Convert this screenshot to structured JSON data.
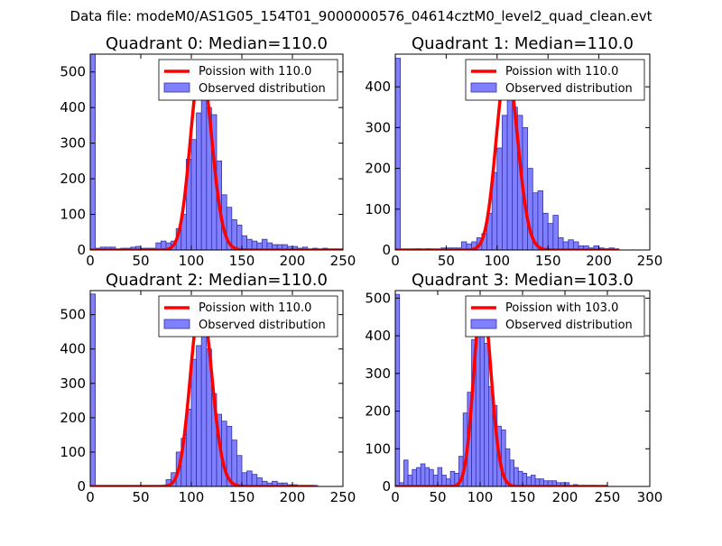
{
  "figure": {
    "suptitle": "Data file: modeM0/AS1G05_154T01_9000000576_04614cztM0_level2_quad_clean.evt"
  },
  "colors": {
    "bar_fill": "#7f7fff",
    "bar_edge": "#3333aa",
    "curve": "#ff0000",
    "legend_edge": "#000000"
  },
  "chart_data": [
    {
      "type": "bar",
      "title": "Quadrant 0: Median=110.0",
      "xlim": [
        0,
        250
      ],
      "ylim": [
        0,
        550
      ],
      "xticks": [
        0,
        50,
        100,
        150,
        200,
        250
      ],
      "yticks": [
        0,
        100,
        200,
        300,
        400,
        500
      ],
      "bin_width": 5,
      "bins": [
        [
          0,
          550
        ],
        [
          5,
          5
        ],
        [
          10,
          8
        ],
        [
          15,
          8
        ],
        [
          20,
          8
        ],
        [
          30,
          5
        ],
        [
          35,
          5
        ],
        [
          40,
          8
        ],
        [
          45,
          10
        ],
        [
          50,
          5
        ],
        [
          55,
          5
        ],
        [
          60,
          5
        ],
        [
          65,
          20
        ],
        [
          70,
          25
        ],
        [
          75,
          20
        ],
        [
          80,
          25
        ],
        [
          85,
          60
        ],
        [
          90,
          100
        ],
        [
          95,
          255
        ],
        [
          100,
          310
        ],
        [
          105,
          385
        ],
        [
          110,
          520
        ],
        [
          115,
          400
        ],
        [
          120,
          380
        ],
        [
          125,
          250
        ],
        [
          130,
          155
        ],
        [
          135,
          120
        ],
        [
          140,
          85
        ],
        [
          145,
          70
        ],
        [
          150,
          40
        ],
        [
          155,
          30
        ],
        [
          160,
          25
        ],
        [
          165,
          20
        ],
        [
          170,
          30
        ],
        [
          175,
          20
        ],
        [
          180,
          15
        ],
        [
          185,
          15
        ],
        [
          190,
          15
        ],
        [
          195,
          10
        ],
        [
          200,
          10
        ],
        [
          205,
          5
        ],
        [
          210,
          8
        ],
        [
          220,
          5
        ],
        [
          230,
          5
        ],
        [
          240,
          3
        ]
      ],
      "poisson": {
        "lambda": 110.0,
        "peak": 520,
        "x_range": [
          0,
          250
        ]
      },
      "legend": [
        "Poission with 110.0",
        "Observed distribution"
      ]
    },
    {
      "type": "bar",
      "title": "Quadrant 1: Median=110.0",
      "xlim": [
        0,
        250
      ],
      "ylim": [
        0,
        480
      ],
      "xticks": [
        0,
        50,
        100,
        150,
        200,
        250
      ],
      "yticks": [
        0,
        100,
        200,
        300,
        400
      ],
      "bin_width": 5,
      "bins": [
        [
          0,
          470
        ],
        [
          20,
          3
        ],
        [
          30,
          3
        ],
        [
          45,
          5
        ],
        [
          50,
          5
        ],
        [
          55,
          5
        ],
        [
          60,
          5
        ],
        [
          65,
          20
        ],
        [
          70,
          15
        ],
        [
          75,
          20
        ],
        [
          80,
          30
        ],
        [
          85,
          40
        ],
        [
          90,
          90
        ],
        [
          95,
          190
        ],
        [
          100,
          250
        ],
        [
          105,
          330
        ],
        [
          110,
          450
        ],
        [
          115,
          350
        ],
        [
          120,
          330
        ],
        [
          125,
          300
        ],
        [
          130,
          200
        ],
        [
          135,
          140
        ],
        [
          140,
          145
        ],
        [
          145,
          90
        ],
        [
          150,
          65
        ],
        [
          155,
          85
        ],
        [
          160,
          30
        ],
        [
          165,
          20
        ],
        [
          170,
          25
        ],
        [
          175,
          20
        ],
        [
          180,
          10
        ],
        [
          185,
          10
        ],
        [
          190,
          5
        ],
        [
          195,
          10
        ],
        [
          200,
          5
        ],
        [
          205,
          3
        ],
        [
          210,
          5
        ]
      ],
      "poisson": {
        "lambda": 110.0,
        "peak": 450,
        "x_range": [
          0,
          220
        ]
      },
      "legend": [
        "Poission with 110.0",
        "Observed distribution"
      ]
    },
    {
      "type": "bar",
      "title": "Quadrant 2: Median=110.0",
      "xlim": [
        0,
        250
      ],
      "ylim": [
        0,
        570
      ],
      "xticks": [
        0,
        50,
        100,
        150,
        200,
        250
      ],
      "yticks": [
        0,
        100,
        200,
        300,
        400,
        500
      ],
      "bin_width": 5,
      "bins": [
        [
          0,
          560
        ],
        [
          75,
          20
        ],
        [
          80,
          40
        ],
        [
          85,
          100
        ],
        [
          90,
          140
        ],
        [
          95,
          225
        ],
        [
          100,
          370
        ],
        [
          105,
          410
        ],
        [
          110,
          480
        ],
        [
          115,
          400
        ],
        [
          120,
          270
        ],
        [
          125,
          210
        ],
        [
          130,
          190
        ],
        [
          135,
          175
        ],
        [
          140,
          135
        ],
        [
          145,
          90
        ],
        [
          150,
          40
        ],
        [
          155,
          45
        ],
        [
          160,
          35
        ],
        [
          165,
          25
        ],
        [
          170,
          15
        ],
        [
          175,
          10
        ],
        [
          180,
          15
        ],
        [
          185,
          10
        ],
        [
          190,
          10
        ],
        [
          195,
          5
        ],
        [
          200,
          5
        ],
        [
          210,
          3
        ],
        [
          220,
          3
        ]
      ],
      "poisson": {
        "lambda": 110.0,
        "peak": 540,
        "x_range": [
          0,
          222
        ]
      },
      "legend": [
        "Poission with 110.0",
        "Observed distribution"
      ]
    },
    {
      "type": "bar",
      "title": "Quadrant 3: Median=103.0",
      "xlim": [
        0,
        300
      ],
      "ylim": [
        0,
        520
      ],
      "xticks": [
        0,
        50,
        100,
        150,
        200,
        250,
        300
      ],
      "yticks": [
        0,
        100,
        200,
        300,
        400,
        500
      ],
      "bin_width": 5,
      "bins": [
        [
          0,
          510
        ],
        [
          5,
          10
        ],
        [
          10,
          70
        ],
        [
          15,
          30
        ],
        [
          20,
          45
        ],
        [
          25,
          50
        ],
        [
          30,
          60
        ],
        [
          35,
          50
        ],
        [
          40,
          45
        ],
        [
          45,
          30
        ],
        [
          50,
          50
        ],
        [
          55,
          30
        ],
        [
          60,
          20
        ],
        [
          65,
          40
        ],
        [
          70,
          35
        ],
        [
          75,
          80
        ],
        [
          80,
          195
        ],
        [
          85,
          250
        ],
        [
          90,
          390
        ],
        [
          95,
          460
        ],
        [
          100,
          440
        ],
        [
          105,
          380
        ],
        [
          110,
          265
        ],
        [
          115,
          215
        ],
        [
          120,
          160
        ],
        [
          125,
          150
        ],
        [
          130,
          100
        ],
        [
          135,
          70
        ],
        [
          140,
          50
        ],
        [
          145,
          40
        ],
        [
          150,
          35
        ],
        [
          155,
          25
        ],
        [
          160,
          30
        ],
        [
          165,
          20
        ],
        [
          170,
          20
        ],
        [
          175,
          15
        ],
        [
          180,
          15
        ],
        [
          185,
          15
        ],
        [
          190,
          10
        ],
        [
          195,
          10
        ],
        [
          200,
          10
        ],
        [
          210,
          5
        ],
        [
          220,
          3
        ],
        [
          230,
          3
        ]
      ],
      "poisson": {
        "lambda": 103.0,
        "peak": 500,
        "x_range": [
          0,
          250
        ]
      },
      "legend": [
        "Poission with 103.0",
        "Observed distribution"
      ]
    }
  ]
}
